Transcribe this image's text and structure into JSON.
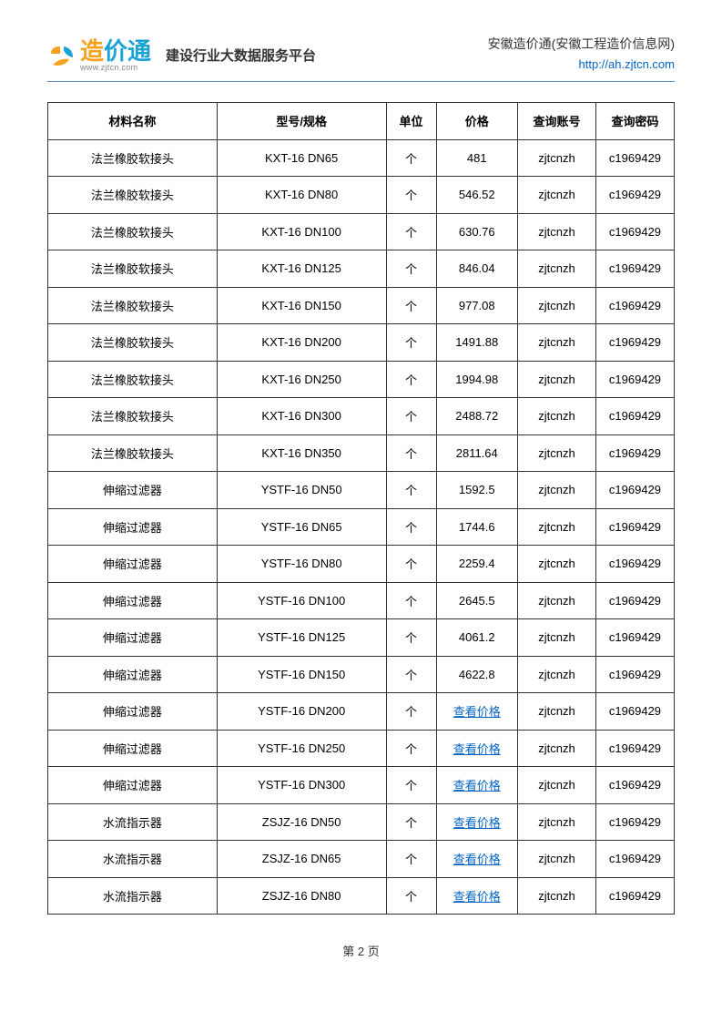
{
  "header": {
    "logo_cn1": "造",
    "logo_cn2": "价",
    "logo_cn3": "通",
    "logo_url": "www.zjtcn.com",
    "platform": "建设行业大数据服务平台",
    "source_title": "安徽造价通(安徽工程造价信息网)",
    "source_link": "http://ah.zjtcn.com"
  },
  "table": {
    "headers": [
      "材料名称",
      "型号/规格",
      "单位",
      "价格",
      "查询账号",
      "查询密码"
    ],
    "rows": [
      {
        "name": "法兰橡胶软接头",
        "model": "KXT-16 DN65",
        "unit": "个",
        "price": "481",
        "is_link": false,
        "acct": "zjtcnzh",
        "pwd": "c1969429"
      },
      {
        "name": "法兰橡胶软接头",
        "model": "KXT-16 DN80",
        "unit": "个",
        "price": "546.52",
        "is_link": false,
        "acct": "zjtcnzh",
        "pwd": "c1969429"
      },
      {
        "name": "法兰橡胶软接头",
        "model": "KXT-16 DN100",
        "unit": "个",
        "price": "630.76",
        "is_link": false,
        "acct": "zjtcnzh",
        "pwd": "c1969429"
      },
      {
        "name": "法兰橡胶软接头",
        "model": "KXT-16 DN125",
        "unit": "个",
        "price": "846.04",
        "is_link": false,
        "acct": "zjtcnzh",
        "pwd": "c1969429"
      },
      {
        "name": "法兰橡胶软接头",
        "model": "KXT-16 DN150",
        "unit": "个",
        "price": "977.08",
        "is_link": false,
        "acct": "zjtcnzh",
        "pwd": "c1969429"
      },
      {
        "name": "法兰橡胶软接头",
        "model": "KXT-16 DN200",
        "unit": "个",
        "price": "1491.88",
        "is_link": false,
        "acct": "zjtcnzh",
        "pwd": "c1969429"
      },
      {
        "name": "法兰橡胶软接头",
        "model": "KXT-16 DN250",
        "unit": "个",
        "price": "1994.98",
        "is_link": false,
        "acct": "zjtcnzh",
        "pwd": "c1969429"
      },
      {
        "name": "法兰橡胶软接头",
        "model": "KXT-16 DN300",
        "unit": "个",
        "price": "2488.72",
        "is_link": false,
        "acct": "zjtcnzh",
        "pwd": "c1969429"
      },
      {
        "name": "法兰橡胶软接头",
        "model": "KXT-16 DN350",
        "unit": "个",
        "price": "2811.64",
        "is_link": false,
        "acct": "zjtcnzh",
        "pwd": "c1969429"
      },
      {
        "name": "伸缩过滤器",
        "model": "YSTF-16 DN50",
        "unit": "个",
        "price": "1592.5",
        "is_link": false,
        "acct": "zjtcnzh",
        "pwd": "c1969429"
      },
      {
        "name": "伸缩过滤器",
        "model": "YSTF-16 DN65",
        "unit": "个",
        "price": "1744.6",
        "is_link": false,
        "acct": "zjtcnzh",
        "pwd": "c1969429"
      },
      {
        "name": "伸缩过滤器",
        "model": "YSTF-16 DN80",
        "unit": "个",
        "price": "2259.4",
        "is_link": false,
        "acct": "zjtcnzh",
        "pwd": "c1969429"
      },
      {
        "name": "伸缩过滤器",
        "model": "YSTF-16 DN100",
        "unit": "个",
        "price": "2645.5",
        "is_link": false,
        "acct": "zjtcnzh",
        "pwd": "c1969429"
      },
      {
        "name": "伸缩过滤器",
        "model": "YSTF-16 DN125",
        "unit": "个",
        "price": "4061.2",
        "is_link": false,
        "acct": "zjtcnzh",
        "pwd": "c1969429"
      },
      {
        "name": "伸缩过滤器",
        "model": "YSTF-16 DN150",
        "unit": "个",
        "price": "4622.8",
        "is_link": false,
        "acct": "zjtcnzh",
        "pwd": "c1969429"
      },
      {
        "name": "伸缩过滤器",
        "model": "YSTF-16 DN200",
        "unit": "个",
        "price": "查看价格",
        "is_link": true,
        "acct": "zjtcnzh",
        "pwd": "c1969429"
      },
      {
        "name": "伸缩过滤器",
        "model": "YSTF-16 DN250",
        "unit": "个",
        "price": "查看价格",
        "is_link": true,
        "acct": "zjtcnzh",
        "pwd": "c1969429"
      },
      {
        "name": "伸缩过滤器",
        "model": "YSTF-16 DN300",
        "unit": "个",
        "price": "查看价格",
        "is_link": true,
        "acct": "zjtcnzh",
        "pwd": "c1969429"
      },
      {
        "name": "水流指示器",
        "model": "ZSJZ-16 DN50",
        "unit": "个",
        "price": "查看价格",
        "is_link": true,
        "acct": "zjtcnzh",
        "pwd": "c1969429"
      },
      {
        "name": "水流指示器",
        "model": "ZSJZ-16 DN65",
        "unit": "个",
        "price": "查看价格",
        "is_link": true,
        "acct": "zjtcnzh",
        "pwd": "c1969429"
      },
      {
        "name": "水流指示器",
        "model": "ZSJZ-16 DN80",
        "unit": "个",
        "price": "查看价格",
        "is_link": true,
        "acct": "zjtcnzh",
        "pwd": "c1969429"
      }
    ]
  },
  "footer": {
    "page_text": "第 2 页"
  },
  "colors": {
    "logo_orange": "#f6a21e",
    "logo_blue": "#1ba3d6",
    "link_blue": "#0563c1",
    "border": "#333333",
    "header_border": "#5b8cc7"
  }
}
